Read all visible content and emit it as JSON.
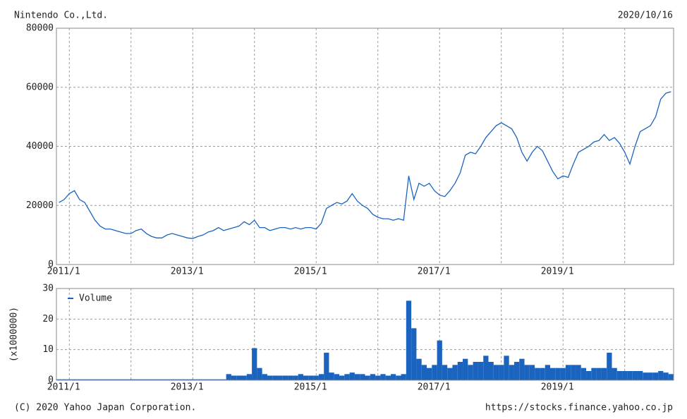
{
  "footer": {
    "copyright": "(C) 2020 Yahoo Japan Corporation.",
    "url": "https://stocks.finance.yahoo.co.jp"
  },
  "chart_data": [
    {
      "type": "line",
      "title": "Nintendo Co.,Ltd.",
      "subtitle": "2020/10/16",
      "color": "#1a64c0",
      "grid": true,
      "x": [
        "2010/11",
        "2010/12",
        "2011/1",
        "2011/2",
        "2011/3",
        "2011/4",
        "2011/5",
        "2011/6",
        "2011/7",
        "2011/8",
        "2011/9",
        "2011/10",
        "2011/11",
        "2011/12",
        "2012/1",
        "2012/2",
        "2012/3",
        "2012/4",
        "2012/5",
        "2012/6",
        "2012/7",
        "2012/8",
        "2012/9",
        "2012/10",
        "2012/11",
        "2012/12",
        "2013/1",
        "2013/2",
        "2013/3",
        "2013/4",
        "2013/5",
        "2013/6",
        "2013/7",
        "2013/8",
        "2013/9",
        "2013/10",
        "2013/11",
        "2013/12",
        "2014/1",
        "2014/2",
        "2014/3",
        "2014/4",
        "2014/5",
        "2014/6",
        "2014/7",
        "2014/8",
        "2014/9",
        "2014/10",
        "2014/11",
        "2014/12",
        "2015/1",
        "2015/2",
        "2015/3",
        "2015/4",
        "2015/5",
        "2015/6",
        "2015/7",
        "2015/8",
        "2015/9",
        "2015/10",
        "2015/11",
        "2015/12",
        "2016/1",
        "2016/2",
        "2016/3",
        "2016/4",
        "2016/5",
        "2016/6",
        "2016/7",
        "2016/8",
        "2016/9",
        "2016/10",
        "2016/11",
        "2016/12",
        "2017/1",
        "2017/2",
        "2017/3",
        "2017/4",
        "2017/5",
        "2017/6",
        "2017/7",
        "2017/8",
        "2017/9",
        "2017/10",
        "2017/11",
        "2017/12",
        "2018/1",
        "2018/2",
        "2018/3",
        "2018/4",
        "2018/5",
        "2018/6",
        "2018/7",
        "2018/8",
        "2018/9",
        "2018/10",
        "2018/11",
        "2018/12",
        "2019/1",
        "2019/2",
        "2019/3",
        "2019/4",
        "2019/5",
        "2019/6",
        "2019/7",
        "2019/8",
        "2019/9",
        "2019/10",
        "2019/11",
        "2019/12",
        "2020/1",
        "2020/2",
        "2020/3",
        "2020/4",
        "2020/5",
        "2020/6",
        "2020/7",
        "2020/8",
        "2020/9",
        "2020/10"
      ],
      "values": [
        21000,
        22000,
        24000,
        25000,
        22000,
        21000,
        18000,
        15000,
        13000,
        12000,
        12000,
        11500,
        11000,
        10500,
        10500,
        11500,
        12000,
        10500,
        9500,
        9000,
        9000,
        10000,
        10500,
        10000,
        9500,
        9000,
        8800,
        9500,
        10000,
        11000,
        11500,
        12500,
        11500,
        12000,
        12500,
        13000,
        14500,
        13500,
        15000,
        12500,
        12500,
        11500,
        12000,
        12500,
        12500,
        12000,
        12500,
        12000,
        12500,
        12500,
        12000,
        14000,
        19000,
        20000,
        21000,
        20500,
        21500,
        24000,
        21500,
        20000,
        19000,
        17000,
        16000,
        15500,
        15500,
        15000,
        15500,
        15000,
        30000,
        22000,
        27500,
        26500,
        27500,
        25000,
        23500,
        23000,
        25000,
        27500,
        31000,
        37000,
        38000,
        37500,
        40000,
        43000,
        45000,
        47000,
        48000,
        47000,
        46000,
        43000,
        38000,
        35000,
        38000,
        40000,
        38500,
        35000,
        31500,
        29000,
        30000,
        29500,
        34000,
        38000,
        39000,
        40000,
        41500,
        42000,
        44000,
        42000,
        43000,
        41000,
        38000,
        34000,
        40000,
        45000,
        46000,
        47000,
        50000,
        56000,
        58000,
        58500
      ],
      "ylim": [
        0,
        80000
      ],
      "yticks": [
        0,
        20000,
        40000,
        60000,
        80000
      ],
      "xticks": [
        "2011/1",
        "2013/1",
        "2015/1",
        "2017/1",
        "2019/1"
      ],
      "xgrid": [
        "2011/1",
        "2012/1",
        "2013/1",
        "2014/1",
        "2015/1",
        "2016/1",
        "2017/1",
        "2018/1",
        "2019/1",
        "2020/1"
      ]
    },
    {
      "type": "bar",
      "ylabel": "(x1000000)",
      "legend": "upper left",
      "grid": true,
      "x": [
        "2010/11",
        "2010/12",
        "2011/1",
        "2011/2",
        "2011/3",
        "2011/4",
        "2011/5",
        "2011/6",
        "2011/7",
        "2011/8",
        "2011/9",
        "2011/10",
        "2011/11",
        "2011/12",
        "2012/1",
        "2012/2",
        "2012/3",
        "2012/4",
        "2012/5",
        "2012/6",
        "2012/7",
        "2012/8",
        "2012/9",
        "2012/10",
        "2012/11",
        "2012/12",
        "2013/1",
        "2013/2",
        "2013/3",
        "2013/4",
        "2013/5",
        "2013/6",
        "2013/7",
        "2013/8",
        "2013/9",
        "2013/10",
        "2013/11",
        "2013/12",
        "2014/1",
        "2014/2",
        "2014/3",
        "2014/4",
        "2014/5",
        "2014/6",
        "2014/7",
        "2014/8",
        "2014/9",
        "2014/10",
        "2014/11",
        "2014/12",
        "2015/1",
        "2015/2",
        "2015/3",
        "2015/4",
        "2015/5",
        "2015/6",
        "2015/7",
        "2015/8",
        "2015/9",
        "2015/10",
        "2015/11",
        "2015/12",
        "2016/1",
        "2016/2",
        "2016/3",
        "2016/4",
        "2016/5",
        "2016/6",
        "2016/7",
        "2016/8",
        "2016/9",
        "2016/10",
        "2016/11",
        "2016/12",
        "2017/1",
        "2017/2",
        "2017/3",
        "2017/4",
        "2017/5",
        "2017/6",
        "2017/7",
        "2017/8",
        "2017/9",
        "2017/10",
        "2017/11",
        "2017/12",
        "2018/1",
        "2018/2",
        "2018/3",
        "2018/4",
        "2018/5",
        "2018/6",
        "2018/7",
        "2018/8",
        "2018/9",
        "2018/10",
        "2018/11",
        "2018/12",
        "2019/1",
        "2019/2",
        "2019/3",
        "2019/4",
        "2019/5",
        "2019/6",
        "2019/7",
        "2019/8",
        "2019/9",
        "2019/10",
        "2019/11",
        "2019/12",
        "2020/1",
        "2020/2",
        "2020/3",
        "2020/4",
        "2020/5",
        "2020/6",
        "2020/7",
        "2020/8",
        "2020/9",
        "2020/10"
      ],
      "series": [
        {
          "name": "Volume",
          "color": "#1a64c0",
          "values": [
            0.3,
            0.3,
            0.3,
            0.3,
            0.3,
            0.3,
            0.3,
            0.3,
            0.3,
            0.3,
            0.3,
            0.3,
            0.3,
            0.3,
            0.3,
            0.3,
            0.3,
            0.3,
            0.3,
            0.3,
            0.3,
            0.3,
            0.3,
            0.3,
            0.3,
            0.3,
            0.3,
            0.3,
            0.3,
            0.3,
            0.3,
            0.3,
            0.3,
            2,
            1.5,
            1.5,
            1.5,
            2,
            10.5,
            4,
            2,
            1.5,
            1.5,
            1.5,
            1.5,
            1.5,
            1.5,
            2,
            1.5,
            1.5,
            1.5,
            2,
            9,
            2.5,
            2,
            1.5,
            2,
            2.5,
            2,
            2,
            1.5,
            2,
            1.5,
            2,
            1.5,
            2,
            1.5,
            2,
            26,
            17,
            7,
            5,
            4,
            5,
            13,
            5,
            4,
            5,
            6,
            7,
            5,
            6,
            6,
            8,
            6,
            5,
            5,
            8,
            5,
            6,
            7,
            5,
            5,
            4,
            4,
            5,
            4,
            4,
            4,
            5,
            5,
            5,
            4,
            3,
            4,
            4,
            4,
            9,
            4,
            3,
            3,
            3,
            3,
            3,
            2.5,
            2.5,
            2.5,
            3,
            2.5,
            2
          ]
        }
      ],
      "ylim": [
        0,
        30
      ],
      "yticks": [
        0,
        10,
        20,
        30
      ],
      "xticks": [
        "2011/1",
        "2013/1",
        "2015/1",
        "2017/1",
        "2019/1"
      ],
      "xgrid": [
        "2011/1",
        "2012/1",
        "2013/1",
        "2014/1",
        "2015/1",
        "2016/1",
        "2017/1",
        "2018/1",
        "2019/1",
        "2020/1"
      ]
    }
  ]
}
